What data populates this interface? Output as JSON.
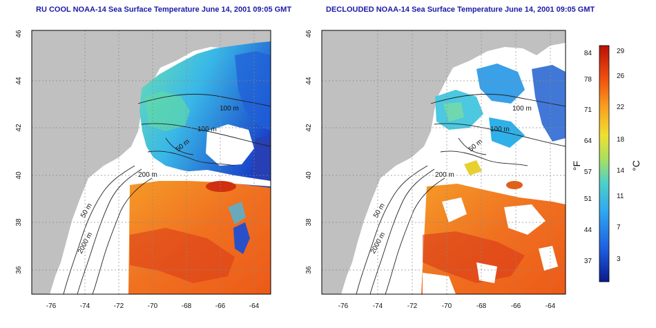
{
  "panels": [
    {
      "title": "RU COOL NOAA-14 Sea Surface Temperature June 14, 2001 09:05 GMT",
      "contour_labels": [
        "100 m",
        "100 m",
        "50 m",
        "200 m",
        "50 m",
        "2000 m"
      ]
    },
    {
      "title": "DECLOUDED NOAA-14 Sea Surface Temperature June 14, 2001 09:05 GMT",
      "contour_labels": [
        "100 m",
        "100 m",
        "50 m",
        "200 m",
        "50 m",
        "2000 m"
      ]
    }
  ],
  "axes": {
    "x_ticks": [
      "-76",
      "-74",
      "-72",
      "-70",
      "-68",
      "-66",
      "-64"
    ],
    "y_ticks": [
      "46",
      "44",
      "42",
      "40",
      "38",
      "36"
    ]
  },
  "colorbar": {
    "left_unit": "°F",
    "right_unit": "°C",
    "f_ticks": [
      "84",
      "78",
      "71",
      "64",
      "57",
      "51",
      "44",
      "37"
    ],
    "c_ticks": [
      "29",
      "26",
      "22",
      "18",
      "14",
      "11",
      "7",
      "3"
    ],
    "colors": [
      "#0a1a8c",
      "#1f5fe0",
      "#30a8f0",
      "#4fd0c8",
      "#a8e060",
      "#f0e030",
      "#f8a020",
      "#f05010",
      "#b81008"
    ]
  }
}
